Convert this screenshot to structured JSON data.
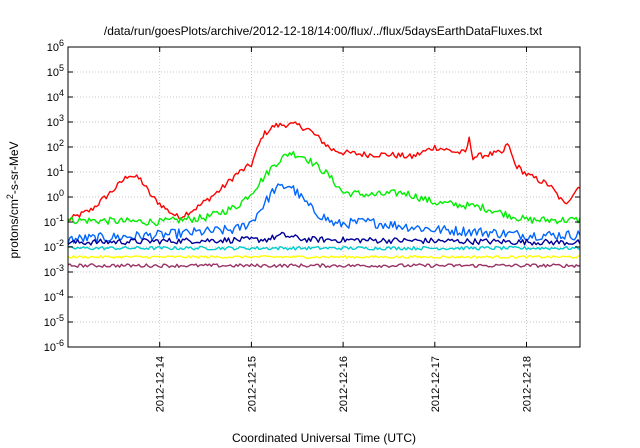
{
  "chart_data": {
    "type": "line",
    "title": "/data/run/goesPlots/archive/2012-12-18/14:00/flux/../flux/5daysEarthDataFluxes.txt",
    "xlabel": "Coordinated Universal Time (UTC)",
    "ylabel_base": "protons/cm",
    "ylabel_sup": "2",
    "ylabel_rest": "-s-sr-MeV",
    "y_scale": "log",
    "ylim": [
      1e-06,
      1000000.0
    ],
    "xlim": [
      "2012-12-13T00:00",
      "2012-12-18T14:00"
    ],
    "grid": true,
    "legend": "none",
    "y_ticks": [
      {
        "base": "10",
        "exp": "-6"
      },
      {
        "base": "10",
        "exp": "-5"
      },
      {
        "base": "10",
        "exp": "-4"
      },
      {
        "base": "10",
        "exp": "-3"
      },
      {
        "base": "10",
        "exp": "-2"
      },
      {
        "base": "10",
        "exp": "-1"
      },
      {
        "base": "10",
        "exp": "0"
      },
      {
        "base": "10",
        "exp": "1"
      },
      {
        "base": "10",
        "exp": "2"
      },
      {
        "base": "10",
        "exp": "3"
      },
      {
        "base": "10",
        "exp": "4"
      },
      {
        "base": "10",
        "exp": "5"
      },
      {
        "base": "10",
        "exp": "6"
      }
    ],
    "x_ticks": [
      "2012-12-14",
      "2012-12-15",
      "2012-12-16",
      "2012-12-17",
      "2012-12-18"
    ],
    "x_tick_dates": [
      "2012-12-14T00:00",
      "2012-12-15T00:00",
      "2012-12-16T00:00",
      "2012-12-17T00:00",
      "2012-12-18T00:00"
    ],
    "series": [
      {
        "color": "#ff0000",
        "noise": 0.12,
        "x": [
          "2012-12-13T00:00",
          "2012-12-13T06:00",
          "2012-12-13T12:00",
          "2012-12-13T16:00",
          "2012-12-13T19:00",
          "2012-12-13T22:00",
          "2012-12-14T02:00",
          "2012-12-14T05:00",
          "2012-12-14T10:00",
          "2012-12-14T16:00",
          "2012-12-14T20:00",
          "2012-12-15T00:00",
          "2012-12-15T03:00",
          "2012-12-15T06:00",
          "2012-12-15T09:00",
          "2012-12-15T12:00",
          "2012-12-15T15:00",
          "2012-12-15T18:00",
          "2012-12-15T21:00",
          "2012-12-16T00:00",
          "2012-12-16T06:00",
          "2012-12-16T12:00",
          "2012-12-16T18:00",
          "2012-12-17T00:00",
          "2012-12-17T06:00",
          "2012-12-17T08:00",
          "2012-12-17T09:00",
          "2012-12-17T10:00",
          "2012-12-17T14:00",
          "2012-12-17T18:00",
          "2012-12-17T19:00",
          "2012-12-17T21:00",
          "2012-12-18T00:00",
          "2012-12-18T06:00",
          "2012-12-18T10:00",
          "2012-12-18T14:00"
        ],
        "y": [
          0.12,
          0.3,
          2,
          8,
          5,
          1,
          0.3,
          0.15,
          0.4,
          2,
          8,
          20,
          300,
          700,
          800,
          750,
          500,
          200,
          80,
          60,
          50,
          50,
          40,
          100,
          60,
          60,
          200,
          40,
          50,
          60,
          150,
          20,
          8,
          3,
          0.5,
          3
        ]
      },
      {
        "color": "#00ee00",
        "noise": 0.15,
        "x": [
          "2012-12-13T00:00",
          "2012-12-14T00:00",
          "2012-12-14T12:00",
          "2012-12-14T20:00",
          "2012-12-15T00:00",
          "2012-12-15T06:00",
          "2012-12-15T10:00",
          "2012-12-15T14:00",
          "2012-12-15T20:00",
          "2012-12-16T00:00",
          "2012-12-16T08:00",
          "2012-12-16T16:00",
          "2012-12-17T00:00",
          "2012-12-17T12:00",
          "2012-12-18T00:00",
          "2012-12-18T14:00"
        ],
        "y": [
          0.12,
          0.1,
          0.15,
          0.4,
          1.5,
          20,
          60,
          40,
          8,
          1.5,
          1.2,
          1.5,
          0.6,
          0.4,
          0.12,
          0.12
        ]
      },
      {
        "color": "#0066ff",
        "noise": 0.2,
        "x": [
          "2012-12-13T00:00",
          "2012-12-14T00:00",
          "2012-12-14T20:00",
          "2012-12-15T00:00",
          "2012-12-15T06:00",
          "2012-12-15T10:00",
          "2012-12-15T16:00",
          "2012-12-15T22:00",
          "2012-12-16T06:00",
          "2012-12-16T12:00",
          "2012-12-17T00:00",
          "2012-12-17T12:00",
          "2012-12-18T00:00",
          "2012-12-18T14:00"
        ],
        "y": [
          0.02,
          0.03,
          0.05,
          0.1,
          2,
          3,
          0.3,
          0.08,
          0.1,
          0.08,
          0.05,
          0.04,
          0.03,
          0.03
        ]
      },
      {
        "color": "#000099",
        "noise": 0.12,
        "x": [
          "2012-12-13T00:00",
          "2012-12-15T04:00",
          "2012-12-15T08:00",
          "2012-12-15T14:00",
          "2012-12-18T14:00"
        ],
        "y": [
          0.015,
          0.02,
          0.03,
          0.02,
          0.015
        ]
      },
      {
        "color": "#00cccc",
        "noise": 0.07,
        "x": [
          "2012-12-13T00:00",
          "2012-12-18T14:00"
        ],
        "y": [
          0.009,
          0.009
        ]
      },
      {
        "color": "#ffff00",
        "noise": 0.05,
        "x": [
          "2012-12-13T00:00",
          "2012-12-18T14:00"
        ],
        "y": [
          0.004,
          0.004
        ]
      },
      {
        "color": "#993366",
        "noise": 0.07,
        "x": [
          "2012-12-13T00:00",
          "2012-12-18T14:00"
        ],
        "y": [
          0.0018,
          0.0018
        ]
      }
    ]
  }
}
